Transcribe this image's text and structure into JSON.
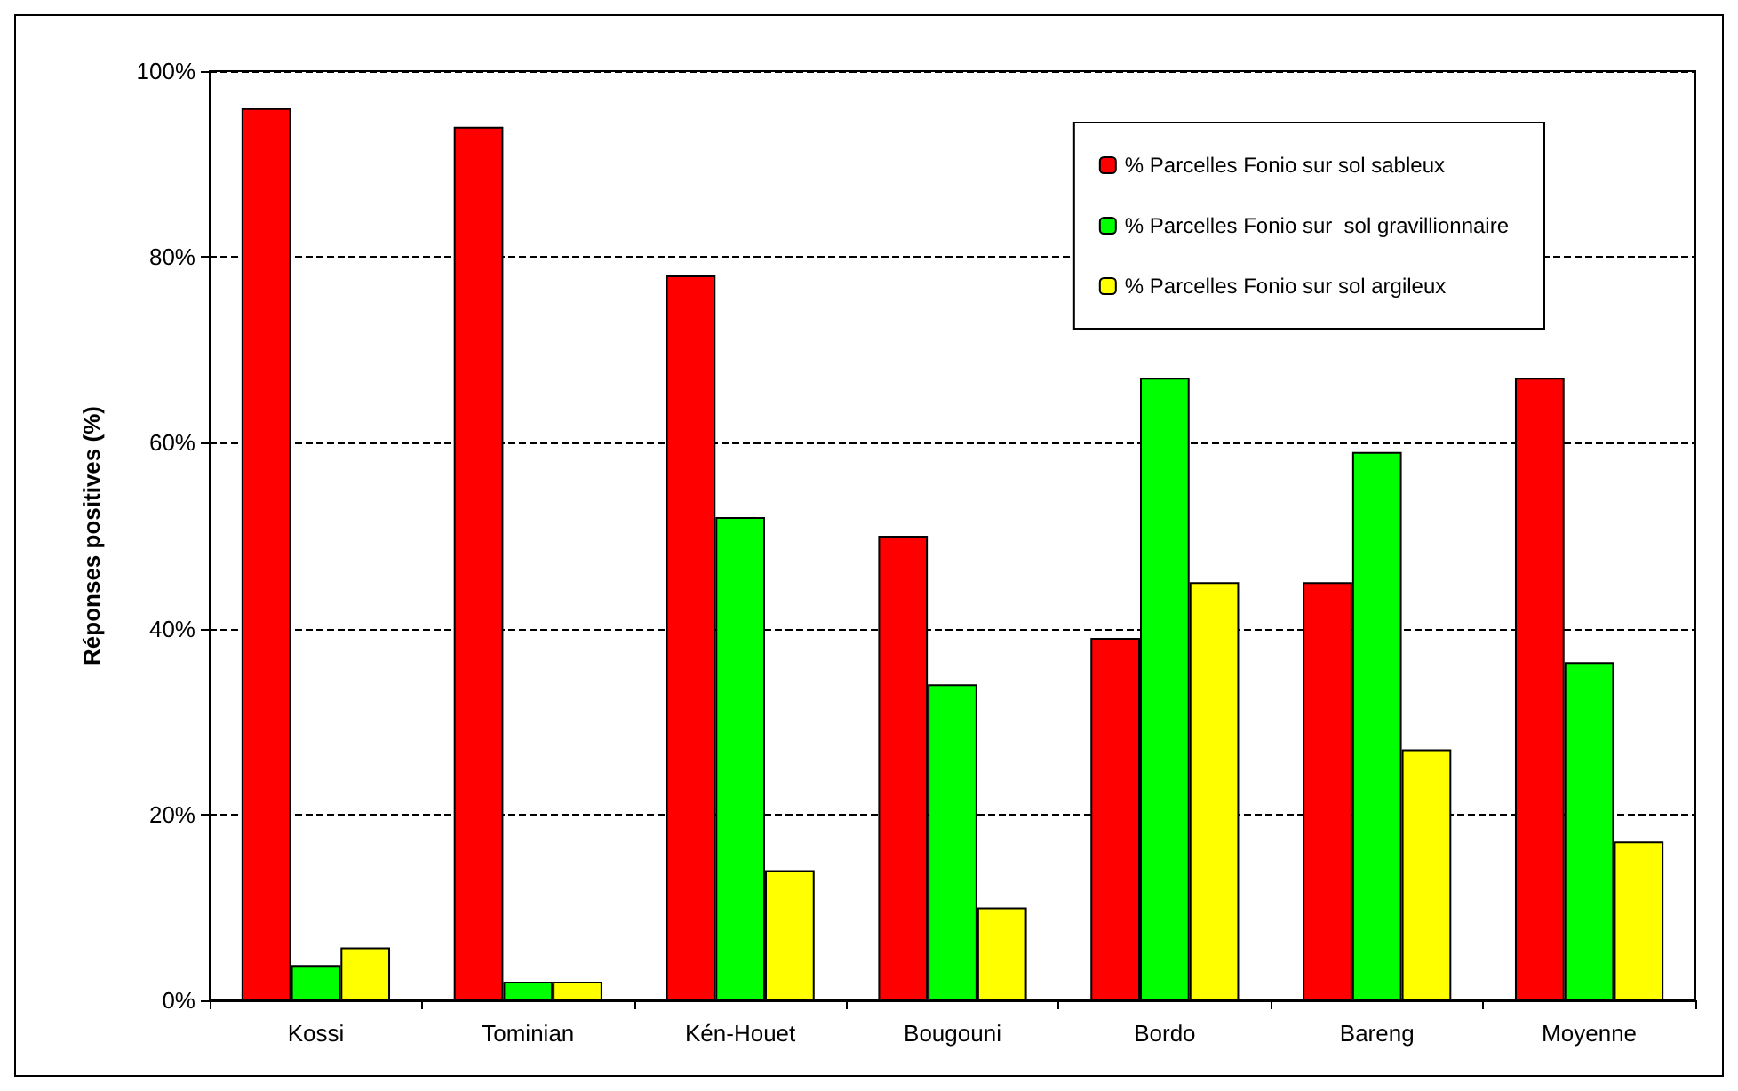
{
  "chart_data": {
    "type": "bar",
    "ylabel": "Réponses positives (%)",
    "categories": [
      "Kossi",
      "Tominian",
      "Kén-Houet",
      "Bougouni",
      "Bordo",
      "Bareng",
      "Moyenne"
    ],
    "series": [
      {
        "name": "% Parcelles Fonio sur sol sableux",
        "color": "#ff0000",
        "values": [
          96,
          94,
          78,
          50,
          39,
          45,
          67
        ]
      },
      {
        "name": "% Parcelles Fonio sur  sol gravillionnaire",
        "color": "#00ff00",
        "values": [
          3.8,
          2,
          52,
          34,
          67,
          59,
          36.4
        ]
      },
      {
        "name": "% Parcelles Fonio sur sol argileux",
        "color": "#ffff00",
        "values": [
          5.7,
          2,
          14,
          10,
          45,
          27,
          17.1
        ]
      }
    ],
    "ylim": [
      0,
      100
    ],
    "yticks": [
      {
        "value": 0,
        "label": "0%"
      },
      {
        "value": 20,
        "label": "20%"
      },
      {
        "value": 40,
        "label": "40%"
      },
      {
        "value": 60,
        "label": "60%"
      },
      {
        "value": 80,
        "label": "80%"
      },
      {
        "value": 100,
        "label": "100%"
      }
    ],
    "grid": "y",
    "legend": "top right"
  }
}
